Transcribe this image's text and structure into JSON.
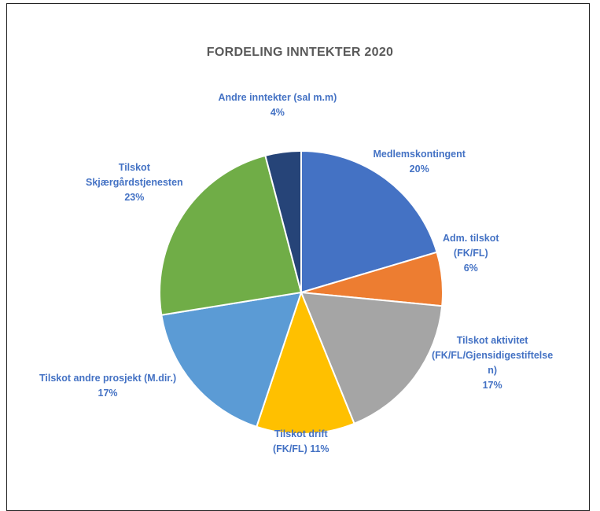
{
  "chart_data": {
    "type": "pie",
    "title": "FORDELING INNTEKTER 2020",
    "slices": [
      {
        "name": "Medlemskontingent",
        "value": 20,
        "label_lines": [
          "Medlemskontingent",
          "20%"
        ],
        "color": "#4472c4"
      },
      {
        "name": "Adm. tilskot (FK/FL)",
        "value": 6,
        "label_lines": [
          "Adm. tilskot",
          "(FK/FL)",
          "6%"
        ],
        "color": "#ed7d31"
      },
      {
        "name": "Tilskot aktivitet (FK/FL/Gjensidigestiftelsen)",
        "value": 17,
        "label_lines": [
          "Tilskot aktivitet",
          "(FK/FL/Gjensidigestiftelse",
          "n)",
          "17%"
        ],
        "color": "#a5a5a5"
      },
      {
        "name": "Tilskot drift (FK/FL)",
        "value": 11,
        "label_lines": [
          "Tilskot drift",
          "(FK/FL) 11%"
        ],
        "color": "#ffc000"
      },
      {
        "name": "Tilskot andre prosjekt (M.dir.)",
        "value": 17,
        "label_lines": [
          "Tilskot andre prosjekt (M.dir.)",
          "17%"
        ],
        "color": "#5b9bd5"
      },
      {
        "name": "Tilskot Skjærgårdstjenesten",
        "value": 23,
        "label_lines": [
          "Tilskot",
          "Skjærgårdstjenesten",
          "23%"
        ],
        "color": "#70ad47"
      },
      {
        "name": "Andre inntekter (sal m.m)",
        "value": 4,
        "label_lines": [
          "Andre inntekter (sal m.m)",
          "4%"
        ],
        "color": "#264478"
      }
    ],
    "label_color": "#4472c4",
    "legend": "none"
  }
}
